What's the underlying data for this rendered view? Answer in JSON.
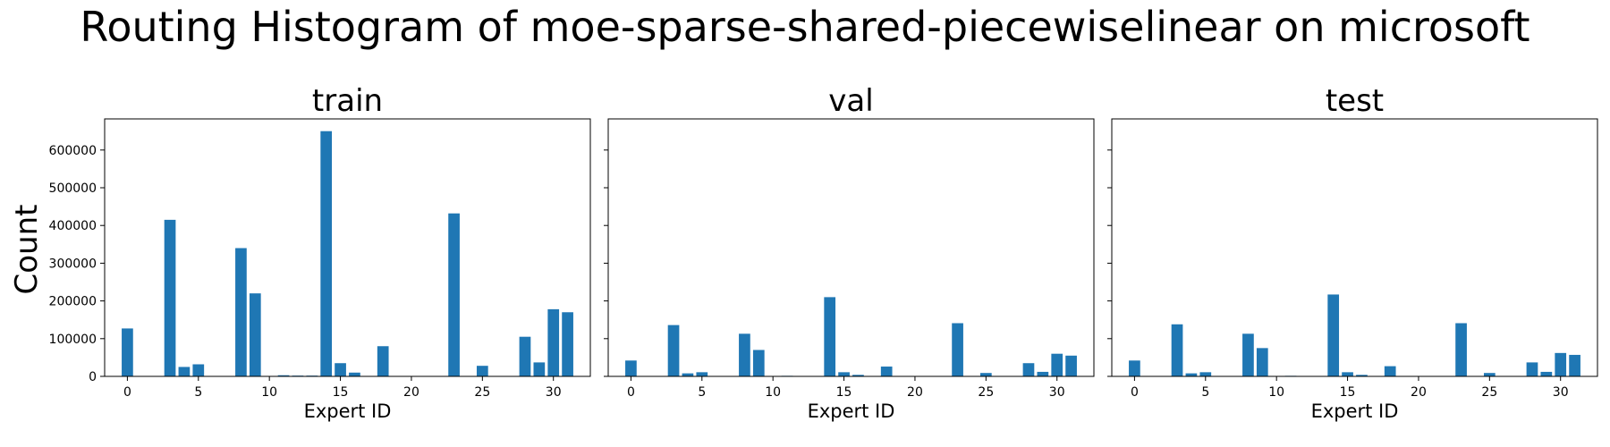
{
  "figure": {
    "title": "Routing Histogram of moe-sparse-shared-piecewiselinear on microsoft",
    "ylabel": "Count",
    "bar_color": "#1f77b4"
  },
  "chart_data": [
    {
      "type": "bar",
      "title": "train",
      "xlabel": "Expert ID",
      "x": [
        0,
        1,
        2,
        3,
        4,
        5,
        6,
        7,
        8,
        9,
        10,
        11,
        12,
        13,
        14,
        15,
        16,
        17,
        18,
        19,
        20,
        21,
        22,
        23,
        24,
        25,
        26,
        27,
        28,
        29,
        30,
        31
      ],
      "values": [
        127000,
        0,
        0,
        415000,
        25000,
        32000,
        0,
        0,
        340000,
        220000,
        0,
        3000,
        2000,
        2000,
        650000,
        35000,
        10000,
        0,
        80000,
        0,
        0,
        0,
        0,
        432000,
        0,
        28000,
        0,
        0,
        105000,
        37000,
        178000,
        170000
      ],
      "xticks": [
        0,
        5,
        10,
        15,
        20,
        25,
        30
      ],
      "yticks": [
        0,
        100000,
        200000,
        300000,
        400000,
        500000,
        600000
      ],
      "xlim": [
        -1.6,
        32.6
      ],
      "ylim": [
        0,
        682500
      ]
    },
    {
      "type": "bar",
      "title": "val",
      "xlabel": "Expert ID",
      "x": [
        0,
        1,
        2,
        3,
        4,
        5,
        6,
        7,
        8,
        9,
        10,
        11,
        12,
        13,
        14,
        15,
        16,
        17,
        18,
        19,
        20,
        21,
        22,
        23,
        24,
        25,
        26,
        27,
        28,
        29,
        30,
        31
      ],
      "values": [
        42000,
        0,
        0,
        136000,
        8000,
        11000,
        0,
        0,
        113000,
        70000,
        0,
        1500,
        1000,
        1000,
        210000,
        11000,
        4000,
        0,
        26000,
        0,
        0,
        0,
        0,
        141000,
        0,
        9000,
        0,
        0,
        35000,
        12000,
        60000,
        55000
      ],
      "xticks": [
        0,
        5,
        10,
        15,
        20,
        25,
        30
      ],
      "xlim": [
        -1.6,
        32.6
      ],
      "ylim": [
        0,
        682500
      ]
    },
    {
      "type": "bar",
      "title": "test",
      "xlabel": "Expert ID",
      "x": [
        0,
        1,
        2,
        3,
        4,
        5,
        6,
        7,
        8,
        9,
        10,
        11,
        12,
        13,
        14,
        15,
        16,
        17,
        18,
        19,
        20,
        21,
        22,
        23,
        24,
        25,
        26,
        27,
        28,
        29,
        30,
        31
      ],
      "values": [
        42000,
        0,
        0,
        138000,
        8000,
        11000,
        0,
        0,
        113000,
        75000,
        0,
        1500,
        1000,
        1000,
        217000,
        11000,
        4000,
        0,
        27000,
        0,
        0,
        0,
        0,
        141000,
        0,
        9000,
        0,
        0,
        37000,
        12000,
        62000,
        57000
      ],
      "xticks": [
        0,
        5,
        10,
        15,
        20,
        25,
        30
      ],
      "xlim": [
        -1.6,
        32.6
      ],
      "ylim": [
        0,
        682500
      ]
    }
  ]
}
